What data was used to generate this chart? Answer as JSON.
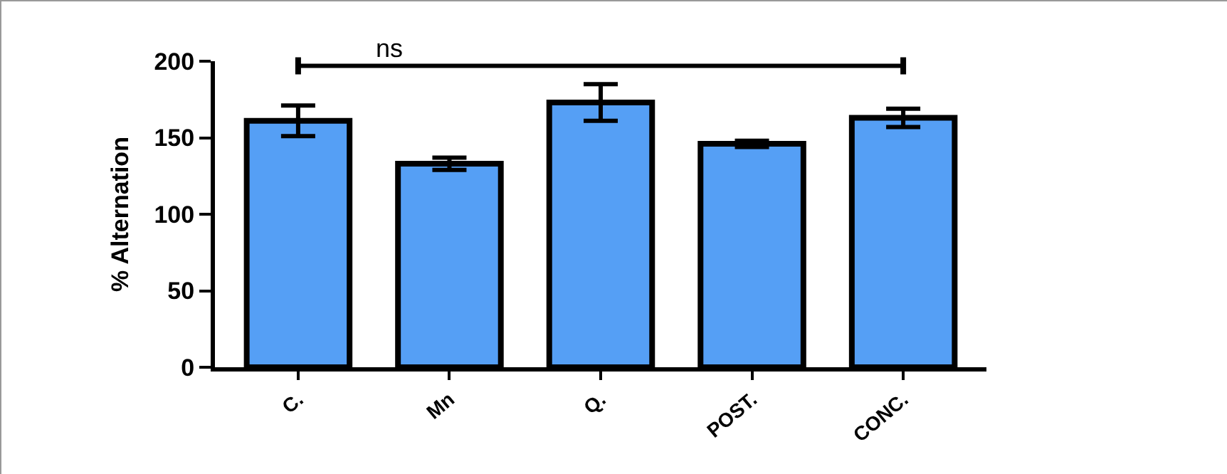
{
  "chart_data": {
    "type": "bar",
    "ylabel": "% Alternation",
    "categories": [
      "C.",
      "Mn",
      "Q.",
      "POST.",
      "CONC."
    ],
    "values": [
      161,
      133,
      173,
      146,
      163
    ],
    "errors": [
      10,
      4,
      12,
      2,
      6
    ],
    "color": "#559ff5",
    "ylim": [
      0,
      200
    ],
    "yticks": [
      0,
      50,
      100,
      150,
      200
    ],
    "grid": false,
    "annotations": [
      "ns"
    ]
  }
}
